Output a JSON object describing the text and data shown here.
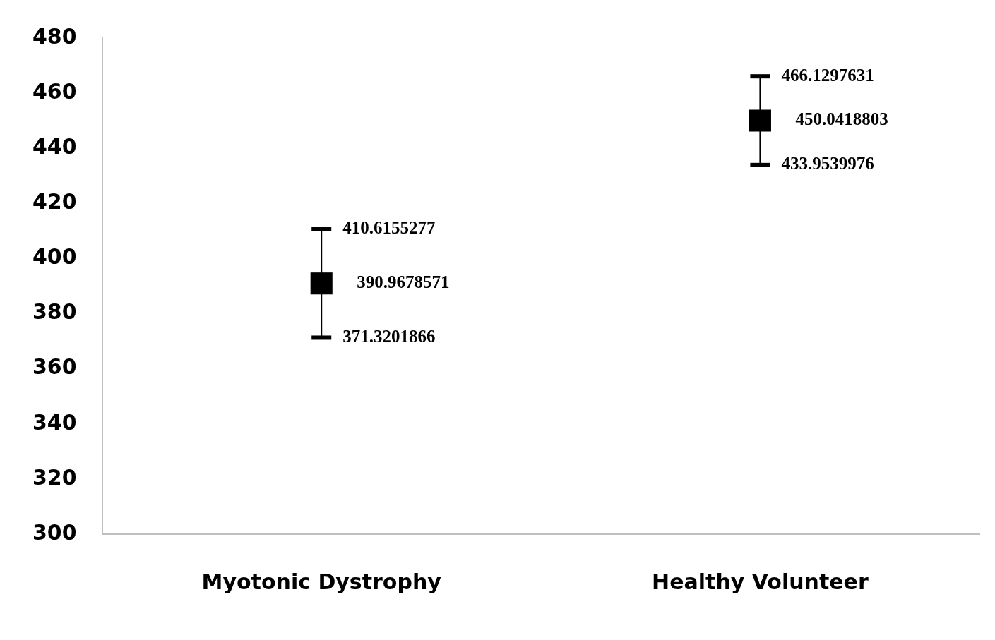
{
  "chart_data": {
    "type": "scatter",
    "categories": [
      "Myotonic Dystrophy",
      "Healthy Volunteer"
    ],
    "values": [
      390.9678571,
      450.0418803
    ],
    "errors": [
      19.6476706,
      16.0878828
    ],
    "color": "#000000",
    "marker": "square",
    "data_labels": true,
    "ylim": [
      300,
      480
    ],
    "yticks": [
      300,
      320,
      340,
      360,
      380,
      400,
      420,
      440,
      460,
      480
    ],
    "grid": false,
    "legend": false,
    "annotations": [
      {
        "text": "410.6155277",
        "x": "Myotonic Dystrophy",
        "y": 410.6155277
      },
      {
        "text": "371.3201866",
        "x": "Myotonic Dystrophy",
        "y": 371.3201866
      },
      {
        "text": "466.1297631",
        "x": "Healthy Volunteer",
        "y": 466.1297631
      },
      {
        "text": "433.9539976",
        "x": "Healthy Volunteer",
        "y": 433.9539976
      }
    ]
  }
}
